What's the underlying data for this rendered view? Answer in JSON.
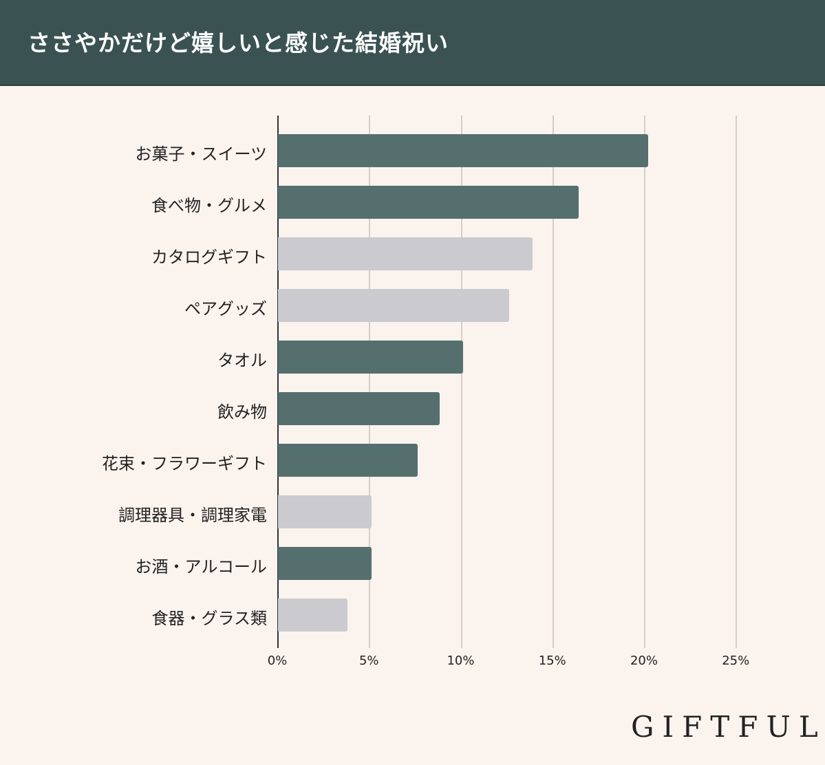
{
  "header": {
    "title": "ささやかだけど嬉しいと感じた結婚祝い"
  },
  "logo": {
    "text": "GIFTFUL"
  },
  "colors": {
    "header_bg": "#3a5352",
    "highlight_bar": "#556f6e",
    "muted_bar": "#cacacf",
    "background": "#fbf3ee"
  },
  "chart_data": {
    "type": "bar",
    "orientation": "horizontal",
    "title": "ささやかだけど嬉しいと感じた結婚祝い",
    "xlabel": "",
    "ylabel": "",
    "xlim": [
      0,
      25
    ],
    "x_ticks": [
      "0%",
      "5%",
      "10%",
      "15%",
      "20%",
      "25%"
    ],
    "grid": true,
    "categories": [
      "お菓子・スイーツ",
      "食べ物・グルメ",
      "カタログギフト",
      "ペアグッズ",
      "タオル",
      "飲み物",
      "花束・フラワーギフト",
      "調理器具・調理家電",
      "お酒・アルコール",
      "食器・グラス類"
    ],
    "values": [
      20.2,
      16.4,
      13.9,
      12.6,
      10.1,
      8.8,
      7.6,
      5.1,
      5.1,
      3.8
    ],
    "highlighted": [
      true,
      true,
      false,
      false,
      true,
      true,
      true,
      false,
      true,
      false
    ],
    "unit": "%"
  }
}
